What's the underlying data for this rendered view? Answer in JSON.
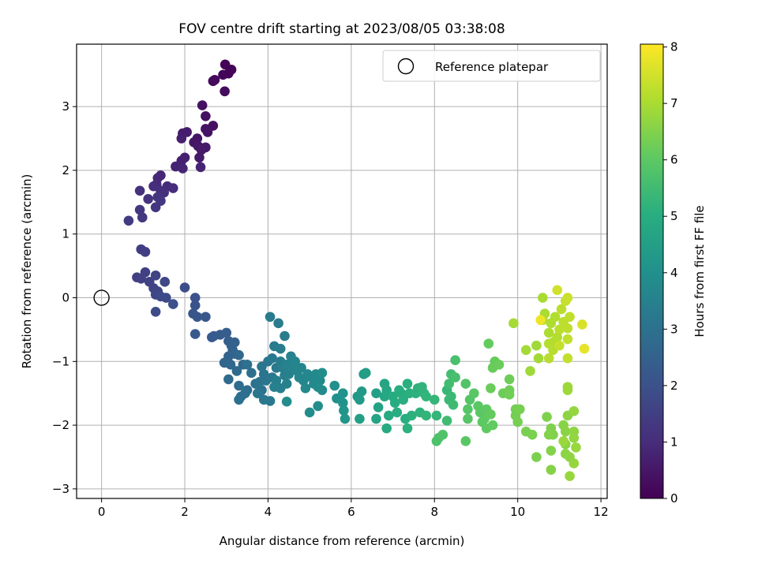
{
  "chart_data": {
    "type": "scatter",
    "title": "FOV centre drift starting at 2023/08/05 03:38:08",
    "xlabel": "Angular distance from reference (arcmin)",
    "ylabel": "Rotation from reference (arcmin)",
    "xlim": [
      -0.6,
      12.15
    ],
    "ylim": [
      -3.15,
      3.98
    ],
    "xticks": [
      0,
      2,
      4,
      6,
      8,
      10,
      12
    ],
    "yticks": [
      -3,
      -2,
      -1,
      0,
      1,
      2,
      3
    ],
    "grid": true,
    "legend": {
      "placement": "top-right",
      "entries": [
        "Reference platepar"
      ]
    },
    "reference_point": {
      "x": 0,
      "y": 0
    },
    "colorbar": {
      "label": "Hours from first FF file",
      "range": [
        0,
        8.05
      ],
      "ticks": [
        0,
        1,
        2,
        3,
        4,
        5,
        6,
        7,
        8
      ],
      "colormap": "viridis"
    },
    "points": [
      [
        2.97,
        3.66,
        0.05
      ],
      [
        3.05,
        3.52,
        0.08
      ],
      [
        3.12,
        3.58,
        0.1
      ],
      [
        2.92,
        3.5,
        0.12
      ],
      [
        2.72,
        3.42,
        0.18
      ],
      [
        2.68,
        3.4,
        0.2
      ],
      [
        2.96,
        3.24,
        0.22
      ],
      [
        2.68,
        2.7,
        0.3
      ],
      [
        2.5,
        2.85,
        0.33
      ],
      [
        2.42,
        3.02,
        0.36
      ],
      [
        2.5,
        2.65,
        0.4
      ],
      [
        2.55,
        2.6,
        0.42
      ],
      [
        2.3,
        2.5,
        0.45
      ],
      [
        2.22,
        2.44,
        0.48
      ],
      [
        2.32,
        2.38,
        0.5
      ],
      [
        2.5,
        2.36,
        0.52
      ],
      [
        2.4,
        2.32,
        0.55
      ],
      [
        2.35,
        2.2,
        0.58
      ],
      [
        2.05,
        2.6,
        0.62
      ],
      [
        1.95,
        2.58,
        0.65
      ],
      [
        1.92,
        2.5,
        0.68
      ],
      [
        2.0,
        2.2,
        0.72
      ],
      [
        1.92,
        2.15,
        0.74
      ],
      [
        1.78,
        2.06,
        0.78
      ],
      [
        2.38,
        2.05,
        0.8
      ],
      [
        1.95,
        2.03,
        0.82
      ],
      [
        1.42,
        1.92,
        0.86
      ],
      [
        1.35,
        1.88,
        0.9
      ],
      [
        1.32,
        1.78,
        0.94
      ],
      [
        1.58,
        1.75,
        0.98
      ],
      [
        1.72,
        1.72,
        1.0
      ],
      [
        1.25,
        1.75,
        1.04
      ],
      [
        1.42,
        1.68,
        1.08
      ],
      [
        1.5,
        1.65,
        1.1
      ],
      [
        0.92,
        1.68,
        1.14
      ],
      [
        1.12,
        1.55,
        1.18
      ],
      [
        1.35,
        1.58,
        1.22
      ],
      [
        1.42,
        1.52,
        1.24
      ],
      [
        1.3,
        1.42,
        1.26
      ],
      [
        0.92,
        1.38,
        1.3
      ],
      [
        0.98,
        1.26,
        1.34
      ],
      [
        0.65,
        1.21,
        1.38
      ],
      [
        0.95,
        0.76,
        1.42
      ],
      [
        1.05,
        0.72,
        1.46
      ],
      [
        0.85,
        0.32,
        1.5
      ],
      [
        1.05,
        0.4,
        1.52
      ],
      [
        0.95,
        0.3,
        1.55
      ],
      [
        1.15,
        0.25,
        1.58
      ],
      [
        1.3,
        0.35,
        1.6
      ],
      [
        1.25,
        0.15,
        1.62
      ],
      [
        1.35,
        0.1,
        1.66
      ],
      [
        1.52,
        0.25,
        1.7
      ],
      [
        1.3,
        0.05,
        1.72
      ],
      [
        1.42,
        0.02,
        1.76
      ],
      [
        1.55,
        0.0,
        1.8
      ],
      [
        1.3,
        -0.22,
        1.84
      ],
      [
        2.0,
        0.16,
        1.9
      ],
      [
        1.72,
        -0.1,
        1.95
      ],
      [
        2.25,
        0.0,
        2.0
      ],
      [
        2.25,
        -0.12,
        2.05
      ],
      [
        2.2,
        -0.25,
        2.1
      ],
      [
        2.3,
        -0.3,
        2.14
      ],
      [
        2.5,
        -0.3,
        2.18
      ],
      [
        2.25,
        -0.57,
        2.22
      ],
      [
        2.7,
        -0.6,
        2.26
      ],
      [
        2.65,
        -0.62,
        2.3
      ],
      [
        2.85,
        -0.58,
        2.34
      ],
      [
        3.0,
        -0.55,
        2.38
      ],
      [
        3.05,
        -0.68,
        2.42
      ],
      [
        3.12,
        -0.75,
        2.46
      ],
      [
        3.2,
        -0.7,
        2.5
      ],
      [
        3.15,
        -0.82,
        2.52
      ],
      [
        3.05,
        -0.92,
        2.55
      ],
      [
        3.2,
        -0.88,
        2.58
      ],
      [
        2.95,
        -1.02,
        2.62
      ],
      [
        3.1,
        -1.05,
        2.66
      ],
      [
        3.3,
        -0.9,
        2.7
      ],
      [
        3.4,
        -1.05,
        2.72
      ],
      [
        3.25,
        -1.15,
        2.75
      ],
      [
        3.05,
        -1.28,
        2.78
      ],
      [
        3.3,
        -1.38,
        2.82
      ],
      [
        3.5,
        -1.45,
        2.85
      ],
      [
        3.35,
        -1.55,
        2.88
      ],
      [
        3.45,
        -1.5,
        2.9
      ],
      [
        3.3,
        -1.6,
        2.92
      ],
      [
        3.6,
        -1.18,
        2.95
      ],
      [
        3.5,
        -1.05,
        2.98
      ],
      [
        3.7,
        -1.35,
        3.0
      ],
      [
        3.85,
        -1.45,
        3.02
      ],
      [
        3.8,
        -1.32,
        3.05
      ],
      [
        3.9,
        -1.2,
        3.08
      ],
      [
        3.95,
        -1.3,
        3.1
      ],
      [
        3.85,
        -1.08,
        3.12
      ],
      [
        4.0,
        -1.0,
        3.14
      ],
      [
        3.75,
        -1.5,
        3.16
      ],
      [
        3.9,
        -1.6,
        3.18
      ],
      [
        4.05,
        -1.62,
        3.2
      ],
      [
        4.1,
        -1.25,
        3.22
      ],
      [
        4.2,
        -1.1,
        3.24
      ],
      [
        4.1,
        -0.95,
        3.26
      ],
      [
        4.15,
        -0.76,
        3.28
      ],
      [
        4.05,
        -0.3,
        3.3
      ],
      [
        4.25,
        -0.4,
        3.32
      ],
      [
        4.4,
        -0.6,
        3.34
      ],
      [
        4.3,
        -0.8,
        3.36
      ],
      [
        4.3,
        -1.0,
        3.38
      ],
      [
        4.35,
        -1.1,
        3.4
      ],
      [
        4.4,
        -1.22,
        3.42
      ],
      [
        4.2,
        -1.3,
        3.44
      ],
      [
        4.3,
        -1.42,
        3.46
      ],
      [
        4.15,
        -1.4,
        3.48
      ],
      [
        4.45,
        -1.35,
        3.5
      ],
      [
        4.5,
        -1.2,
        3.52
      ],
      [
        4.45,
        -1.05,
        3.54
      ],
      [
        4.55,
        -0.92,
        3.56
      ],
      [
        4.6,
        -1.08,
        3.58
      ],
      [
        4.7,
        -1.15,
        3.6
      ],
      [
        4.65,
        -1.0,
        3.62
      ],
      [
        4.8,
        -1.1,
        3.64
      ],
      [
        4.75,
        -1.25,
        3.66
      ],
      [
        4.85,
        -1.3,
        3.68
      ],
      [
        4.95,
        -1.2,
        3.7
      ],
      [
        5.05,
        -1.25,
        3.72
      ],
      [
        4.9,
        -1.42,
        3.74
      ],
      [
        5.1,
        -1.35,
        3.76
      ],
      [
        5.15,
        -1.2,
        3.78
      ],
      [
        5.25,
        -1.3,
        3.8
      ],
      [
        5.3,
        -1.45,
        3.82
      ],
      [
        5.2,
        -1.4,
        3.84
      ],
      [
        5.0,
        -1.8,
        3.86
      ],
      [
        5.2,
        -1.7,
        3.88
      ],
      [
        4.45,
        -1.63,
        3.9
      ],
      [
        5.3,
        -1.18,
        3.92
      ],
      [
        5.6,
        -1.38,
        3.96
      ],
      [
        5.65,
        -1.58,
        4.0
      ],
      [
        5.8,
        -1.5,
        4.05
      ],
      [
        5.8,
        -1.65,
        4.1
      ],
      [
        5.82,
        -1.77,
        4.15
      ],
      [
        5.85,
        -1.9,
        4.2
      ],
      [
        6.15,
        -1.55,
        4.25
      ],
      [
        6.2,
        -1.6,
        4.3
      ],
      [
        6.25,
        -1.47,
        4.35
      ],
      [
        6.3,
        -1.2,
        4.4
      ],
      [
        6.35,
        -1.18,
        4.45
      ],
      [
        6.2,
        -1.9,
        4.5
      ],
      [
        6.6,
        -1.5,
        4.55
      ],
      [
        6.65,
        -1.72,
        4.6
      ],
      [
        6.6,
        -1.9,
        4.65
      ],
      [
        6.8,
        -1.35,
        4.7
      ],
      [
        6.85,
        -1.45,
        4.75
      ],
      [
        6.8,
        -1.55,
        4.8
      ],
      [
        6.9,
        -1.85,
        4.85
      ],
      [
        6.85,
        -2.05,
        4.9
      ],
      [
        7.0,
        -1.55,
        4.92
      ],
      [
        7.05,
        -1.65,
        4.94
      ],
      [
        7.1,
        -1.8,
        4.96
      ],
      [
        7.15,
        -1.45,
        4.98
      ],
      [
        7.2,
        -1.5,
        5.0
      ],
      [
        7.25,
        -1.6,
        5.02
      ],
      [
        7.3,
        -1.9,
        5.04
      ],
      [
        7.35,
        -1.35,
        5.06
      ],
      [
        7.4,
        -1.5,
        5.08
      ],
      [
        7.35,
        -2.05,
        5.1
      ],
      [
        7.45,
        -1.85,
        5.12
      ],
      [
        7.55,
        -1.5,
        5.14
      ],
      [
        7.6,
        -1.42,
        5.16
      ],
      [
        7.65,
        -1.8,
        5.18
      ],
      [
        7.7,
        -1.4,
        5.2
      ],
      [
        7.75,
        -1.5,
        5.22
      ],
      [
        7.8,
        -1.55,
        5.24
      ],
      [
        7.8,
        -1.85,
        5.26
      ],
      [
        8.05,
        -1.85,
        5.28
      ],
      [
        8.0,
        -1.6,
        5.3
      ],
      [
        8.3,
        -1.45,
        5.34
      ],
      [
        8.4,
        -1.55,
        5.38
      ],
      [
        8.35,
        -1.6,
        5.42
      ],
      [
        8.45,
        -1.68,
        5.46
      ],
      [
        8.3,
        -1.93,
        5.5
      ],
      [
        8.35,
        -1.35,
        5.54
      ],
      [
        8.4,
        -1.2,
        5.58
      ],
      [
        8.5,
        -1.25,
        5.62
      ],
      [
        8.5,
        -0.98,
        5.66
      ],
      [
        8.1,
        -2.2,
        5.7
      ],
      [
        8.05,
        -2.25,
        5.74
      ],
      [
        8.2,
        -2.15,
        5.78
      ],
      [
        8.75,
        -1.35,
        5.82
      ],
      [
        8.85,
        -1.6,
        5.86
      ],
      [
        8.8,
        -1.75,
        5.88
      ],
      [
        8.8,
        -1.9,
        5.9
      ],
      [
        8.95,
        -1.5,
        5.92
      ],
      [
        8.75,
        -2.25,
        5.94
      ],
      [
        9.05,
        -1.7,
        5.96
      ],
      [
        9.1,
        -1.8,
        5.98
      ],
      [
        9.15,
        -1.95,
        6.0
      ],
      [
        9.2,
        -1.9,
        6.02
      ],
      [
        9.25,
        -1.75,
        6.04
      ],
      [
        9.25,
        -2.05,
        6.06
      ],
      [
        9.4,
        -2.0,
        6.08
      ],
      [
        9.35,
        -1.83,
        6.1
      ],
      [
        9.3,
        -0.72,
        6.12
      ],
      [
        9.45,
        -1.0,
        6.14
      ],
      [
        9.4,
        -1.1,
        6.16
      ],
      [
        9.55,
        -1.05,
        6.18
      ],
      [
        9.35,
        -1.42,
        6.2
      ],
      [
        9.65,
        -1.5,
        6.22
      ],
      [
        9.8,
        -1.28,
        6.24
      ],
      [
        9.8,
        -1.45,
        6.26
      ],
      [
        9.8,
        -1.52,
        6.28
      ],
      [
        9.95,
        -1.75,
        6.3
      ],
      [
        9.95,
        -1.85,
        6.32
      ],
      [
        10.0,
        -1.95,
        6.34
      ],
      [
        10.05,
        -1.75,
        6.36
      ],
      [
        10.2,
        -2.1,
        6.38
      ],
      [
        10.35,
        -2.15,
        6.4
      ],
      [
        10.45,
        -2.5,
        6.42
      ],
      [
        10.7,
        -1.87,
        6.44
      ],
      [
        10.8,
        -2.05,
        6.46
      ],
      [
        10.85,
        -2.15,
        6.48
      ],
      [
        10.75,
        -2.15,
        6.5
      ],
      [
        10.8,
        -2.4,
        6.52
      ],
      [
        10.8,
        -2.7,
        6.54
      ],
      [
        11.1,
        -2.0,
        6.56
      ],
      [
        11.15,
        -2.1,
        6.58
      ],
      [
        11.15,
        -2.3,
        6.6
      ],
      [
        11.15,
        -2.45,
        6.62
      ],
      [
        11.2,
        -1.85,
        6.64
      ],
      [
        11.25,
        -2.5,
        6.66
      ],
      [
        11.35,
        -2.1,
        6.68
      ],
      [
        11.35,
        -2.2,
        6.7
      ],
      [
        11.35,
        -1.78,
        6.72
      ],
      [
        11.35,
        -2.6,
        6.74
      ],
      [
        11.25,
        -2.8,
        6.76
      ],
      [
        11.4,
        -2.35,
        6.78
      ],
      [
        11.1,
        -2.25,
        6.8
      ],
      [
        11.2,
        -1.4,
        6.82
      ],
      [
        11.2,
        -1.45,
        6.84
      ],
      [
        10.3,
        -1.15,
        6.86
      ],
      [
        10.45,
        -0.75,
        6.88
      ],
      [
        10.5,
        -0.95,
        6.9
      ],
      [
        10.2,
        -0.82,
        6.92
      ],
      [
        9.9,
        -0.4,
        6.95
      ],
      [
        10.6,
        -0.35,
        6.98
      ],
      [
        10.6,
        0.0,
        7.0
      ],
      [
        10.65,
        -0.25,
        7.02
      ],
      [
        10.75,
        -0.55,
        7.04
      ],
      [
        10.8,
        -0.4,
        7.06
      ],
      [
        10.85,
        -0.7,
        7.08
      ],
      [
        10.9,
        -0.3,
        7.1
      ],
      [
        10.95,
        -0.62,
        7.12
      ],
      [
        10.75,
        -0.72,
        7.14
      ],
      [
        10.85,
        -0.82,
        7.16
      ],
      [
        10.75,
        -0.95,
        7.18
      ],
      [
        11.0,
        -0.5,
        7.2
      ],
      [
        11.05,
        -0.18,
        7.22
      ],
      [
        11.1,
        -0.38,
        7.24
      ],
      [
        11.2,
        -0.48,
        7.26
      ],
      [
        11.25,
        -0.3,
        7.28
      ],
      [
        11.2,
        -0.65,
        7.3
      ],
      [
        11.2,
        -0.95,
        7.32
      ],
      [
        11.0,
        -0.75,
        7.34
      ],
      [
        11.15,
        -0.05,
        7.36
      ],
      [
        11.2,
        0.0,
        7.4
      ],
      [
        10.95,
        0.12,
        7.5
      ],
      [
        11.55,
        -0.42,
        7.6
      ],
      [
        11.6,
        -0.8,
        7.75
      ],
      [
        10.55,
        -0.35,
        7.85
      ]
    ]
  }
}
